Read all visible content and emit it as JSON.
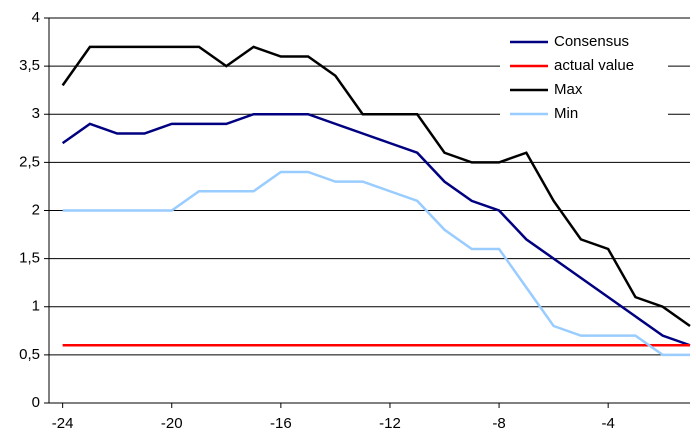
{
  "chart_data": {
    "type": "line",
    "x": [
      -24,
      -23,
      -22,
      -21,
      -20,
      -19,
      -18,
      -17,
      -16,
      -15,
      -14,
      -13,
      -12,
      -11,
      -10,
      -9,
      -8,
      -7,
      -6,
      -5,
      -4,
      -3,
      -2,
      -1
    ],
    "series": [
      {
        "name": "Consensus",
        "color": "#000080",
        "values": [
          2.7,
          2.9,
          2.8,
          2.8,
          2.9,
          2.9,
          2.9,
          3.0,
          3.0,
          3.0,
          2.9,
          2.8,
          2.7,
          2.6,
          2.3,
          2.1,
          2.0,
          1.7,
          1.5,
          1.3,
          1.1,
          0.9,
          0.7,
          0.6
        ]
      },
      {
        "name": "actual value",
        "color": "#ff0000",
        "values": [
          0.6,
          0.6,
          0.6,
          0.6,
          0.6,
          0.6,
          0.6,
          0.6,
          0.6,
          0.6,
          0.6,
          0.6,
          0.6,
          0.6,
          0.6,
          0.6,
          0.6,
          0.6,
          0.6,
          0.6,
          0.6,
          0.6,
          0.6,
          0.6
        ]
      },
      {
        "name": "Max",
        "color": "#000000",
        "values": [
          3.3,
          3.7,
          3.7,
          3.7,
          3.7,
          3.7,
          3.5,
          3.7,
          3.6,
          3.6,
          3.4,
          3.0,
          3.0,
          3.0,
          2.6,
          2.5,
          2.5,
          2.6,
          2.1,
          1.7,
          1.6,
          1.1,
          1.0,
          0.8
        ]
      },
      {
        "name": "Min",
        "color": "#99ccff",
        "values": [
          2.0,
          2.0,
          2.0,
          2.0,
          2.0,
          2.2,
          2.2,
          2.2,
          2.4,
          2.4,
          2.3,
          2.3,
          2.2,
          2.1,
          1.8,
          1.6,
          1.6,
          1.2,
          0.8,
          0.7,
          0.7,
          0.7,
          0.5,
          0.5
        ]
      }
    ],
    "xlim": [
      -24.5,
      -1
    ],
    "xticks": [
      -24,
      -20,
      -16,
      -12,
      -8,
      -4
    ],
    "ylim": [
      0,
      4
    ],
    "yticks": [
      0,
      {
        "value": 0.5,
        "label": "0,5"
      },
      1,
      {
        "value": 1.5,
        "label": "1,5"
      },
      2,
      {
        "value": 2.5,
        "label": "2,5"
      },
      3,
      {
        "value": 3.5,
        "label": "3,5"
      },
      4
    ],
    "grid": true,
    "legend": "upper-right"
  }
}
